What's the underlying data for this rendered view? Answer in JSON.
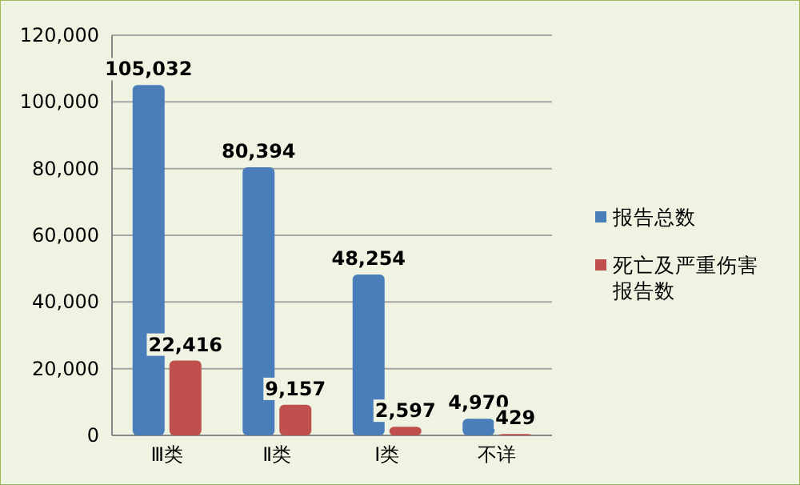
{
  "chart_data": {
    "type": "bar",
    "categories": [
      "Ⅲ类",
      "Ⅱ类",
      "Ⅰ类",
      "不详"
    ],
    "series": [
      {
        "name": "报告总数",
        "color": "#4a7ebb",
        "values": [
          105032,
          80394,
          48254,
          4970
        ],
        "value_labels": [
          "105,032",
          "80,394",
          "48,254",
          "4,970"
        ]
      },
      {
        "name": "死亡及严重伤害报告数",
        "color": "#c0504d",
        "values": [
          22416,
          9157,
          2597,
          429
        ],
        "value_labels": [
          "22,416",
          "9,157",
          "2,597",
          "429"
        ]
      }
    ],
    "ylim": [
      0,
      120000
    ],
    "yticks": [
      0,
      {
        "value": 20000,
        "label": "20,000"
      },
      {
        "value": 40000,
        "label": "40,000"
      },
      {
        "value": 60000,
        "label": "60,000"
      },
      {
        "value": 80000,
        "label": "80,000"
      },
      {
        "value": 100000,
        "label": "100,000"
      },
      {
        "value": 120000,
        "label": "120,000"
      }
    ],
    "grid": "y",
    "legend": "right"
  }
}
